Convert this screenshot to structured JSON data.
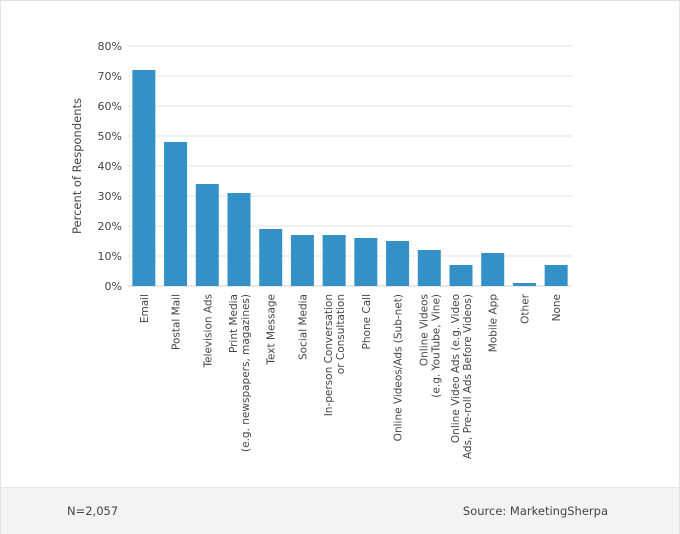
{
  "chart_data": {
    "type": "bar",
    "title": "",
    "xlabel": "",
    "ylabel": "Percent of Respondents",
    "ylim": [
      0,
      80
    ],
    "yticks": [
      "0%",
      "10%",
      "20%",
      "30%",
      "40%",
      "50%",
      "60%",
      "70%",
      "80%"
    ],
    "grid": true,
    "bar_color": "#3391c8",
    "categories": [
      [
        "Email"
      ],
      [
        "Postal Mail"
      ],
      [
        "Television Ads"
      ],
      [
        "Print Media",
        "(e.g. newspapers, magazines)"
      ],
      [
        "Text Message"
      ],
      [
        "Social Media"
      ],
      [
        "In-person Conversation",
        "or Consultation"
      ],
      [
        "Phone Call"
      ],
      [
        "Online Videos/Ads (Sub-net)"
      ],
      [
        "Online Videos",
        "(e.g. YouTube, Vine)"
      ],
      [
        "Online Video Ads (e.g. Video",
        "Ads, Pre-roll Ads Before Videos)"
      ],
      [
        "Mobile App"
      ],
      [
        "Other"
      ],
      [
        "None"
      ]
    ],
    "values": [
      72,
      48,
      34,
      31,
      19,
      17,
      17,
      16,
      15,
      12,
      7,
      11,
      1,
      7
    ]
  },
  "footer": {
    "sample_size": "N=2,057",
    "source": "Source: MarketingSherpa"
  }
}
